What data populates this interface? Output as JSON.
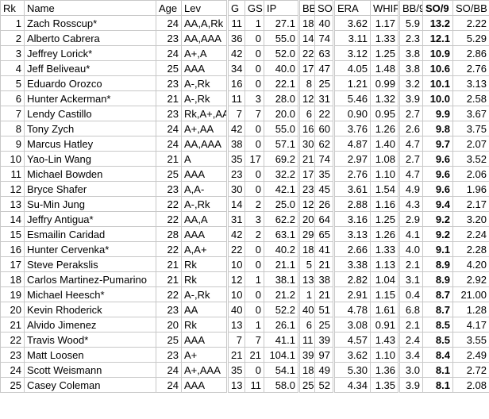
{
  "table": {
    "header": [
      "Rk",
      "Name",
      "Age",
      "Lev",
      "G",
      "GS",
      "IP",
      "BB",
      "SO",
      "ERA",
      "WHIP",
      "BB/9",
      "SO/9",
      "SO/BB"
    ],
    "rows": [
      [
        "1",
        "Zach Rosscup*",
        "24",
        "AA,A,Rk",
        "11",
        "1",
        "27.1",
        "18",
        "40",
        "3.62",
        "1.17",
        "5.9",
        "13.2",
        "2.22"
      ],
      [
        "2",
        "Alberto Cabrera",
        "23",
        "AA,AAA",
        "36",
        "0",
        "55.0",
        "14",
        "74",
        "3.11",
        "1.33",
        "2.3",
        "12.1",
        "5.29"
      ],
      [
        "3",
        "Jeffrey Lorick*",
        "24",
        "A+,A",
        "42",
        "0",
        "52.0",
        "22",
        "63",
        "3.12",
        "1.25",
        "3.8",
        "10.9",
        "2.86"
      ],
      [
        "4",
        "Jeff Beliveau*",
        "25",
        "AAA",
        "34",
        "0",
        "40.0",
        "17",
        "47",
        "4.05",
        "1.48",
        "3.8",
        "10.6",
        "2.76"
      ],
      [
        "5",
        "Eduardo Orozco",
        "23",
        "A-,Rk",
        "16",
        "0",
        "22.1",
        "8",
        "25",
        "1.21",
        "0.99",
        "3.2",
        "10.1",
        "3.13"
      ],
      [
        "6",
        "Hunter Ackerman*",
        "21",
        "A-,Rk",
        "11",
        "3",
        "28.0",
        "12",
        "31",
        "5.46",
        "1.32",
        "3.9",
        "10.0",
        "2.58"
      ],
      [
        "7",
        "Lendy Castillo",
        "23",
        "Rk,A+,AA",
        "7",
        "7",
        "20.0",
        "6",
        "22",
        "0.90",
        "0.95",
        "2.7",
        "9.9",
        "3.67"
      ],
      [
        "8",
        "Tony Zych",
        "24",
        "A+,AA",
        "42",
        "0",
        "55.0",
        "16",
        "60",
        "3.76",
        "1.26",
        "2.6",
        "9.8",
        "3.75"
      ],
      [
        "9",
        "Marcus Hatley",
        "24",
        "AA,AAA",
        "38",
        "0",
        "57.1",
        "30",
        "62",
        "4.87",
        "1.40",
        "4.7",
        "9.7",
        "2.07"
      ],
      [
        "10",
        "Yao-Lin Wang",
        "21",
        "A",
        "35",
        "17",
        "69.2",
        "21",
        "74",
        "2.97",
        "1.08",
        "2.7",
        "9.6",
        "3.52"
      ],
      [
        "11",
        "Michael Bowden",
        "25",
        "AAA",
        "23",
        "0",
        "32.2",
        "17",
        "35",
        "2.76",
        "1.10",
        "4.7",
        "9.6",
        "2.06"
      ],
      [
        "12",
        "Bryce Shafer",
        "23",
        "A,A-",
        "30",
        "0",
        "42.1",
        "23",
        "45",
        "3.61",
        "1.54",
        "4.9",
        "9.6",
        "1.96"
      ],
      [
        "13",
        "Su-Min Jung",
        "22",
        "A-,Rk",
        "14",
        "2",
        "25.0",
        "12",
        "26",
        "2.88",
        "1.16",
        "4.3",
        "9.4",
        "2.17"
      ],
      [
        "14",
        "Jeffry Antigua*",
        "22",
        "AA,A",
        "31",
        "3",
        "62.2",
        "20",
        "64",
        "3.16",
        "1.25",
        "2.9",
        "9.2",
        "3.20"
      ],
      [
        "15",
        "Esmailin Caridad",
        "28",
        "AAA",
        "42",
        "2",
        "63.1",
        "29",
        "65",
        "3.13",
        "1.26",
        "4.1",
        "9.2",
        "2.24"
      ],
      [
        "16",
        "Hunter Cervenka*",
        "22",
        "A,A+",
        "22",
        "0",
        "40.2",
        "18",
        "41",
        "2.66",
        "1.33",
        "4.0",
        "9.1",
        "2.28"
      ],
      [
        "17",
        "Steve Perakslis",
        "21",
        "Rk",
        "10",
        "0",
        "21.1",
        "5",
        "21",
        "3.38",
        "1.13",
        "2.1",
        "8.9",
        "4.20"
      ],
      [
        "18",
        "Carlos Martinez-Pumarino",
        "21",
        "Rk",
        "12",
        "1",
        "38.1",
        "13",
        "38",
        "2.82",
        "1.04",
        "3.1",
        "8.9",
        "2.92"
      ],
      [
        "19",
        "Michael Heesch*",
        "22",
        "A-,Rk",
        "10",
        "0",
        "21.2",
        "1",
        "21",
        "2.91",
        "1.15",
        "0.4",
        "8.7",
        "21.00"
      ],
      [
        "20",
        "Kevin Rhoderick",
        "23",
        "AA",
        "40",
        "0",
        "52.2",
        "40",
        "51",
        "4.78",
        "1.61",
        "6.8",
        "8.7",
        "1.28"
      ],
      [
        "21",
        "Alvido Jimenez",
        "20",
        "Rk",
        "13",
        "1",
        "26.1",
        "6",
        "25",
        "3.08",
        "0.91",
        "2.1",
        "8.5",
        "4.17"
      ],
      [
        "22",
        "Travis Wood*",
        "25",
        "AAA",
        "7",
        "7",
        "41.1",
        "11",
        "39",
        "4.57",
        "1.43",
        "2.4",
        "8.5",
        "3.55"
      ],
      [
        "23",
        "Matt Loosen",
        "23",
        "A+",
        "21",
        "21",
        "104.1",
        "39",
        "97",
        "3.62",
        "1.10",
        "3.4",
        "8.4",
        "2.49"
      ],
      [
        "24",
        "Scott Weismann",
        "24",
        "A+,AAA",
        "35",
        "0",
        "54.1",
        "18",
        "49",
        "5.30",
        "1.36",
        "3.0",
        "8.1",
        "2.72"
      ],
      [
        "25",
        "Casey Coleman",
        "24",
        "AAA",
        "13",
        "11",
        "58.0",
        "25",
        "52",
        "4.34",
        "1.35",
        "3.9",
        "8.1",
        "2.08"
      ]
    ]
  }
}
